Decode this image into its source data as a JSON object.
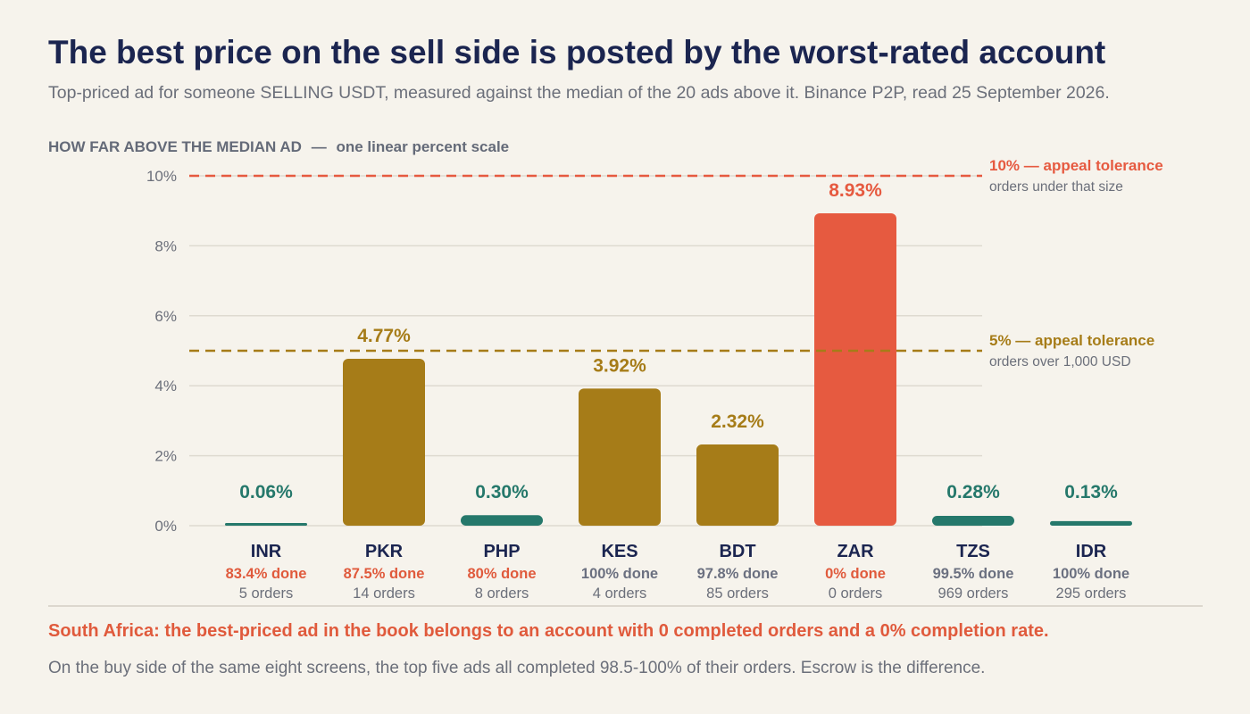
{
  "header": {
    "title": "The best price on the sell side is posted by the worst-rated account",
    "subtitle": "Top-priced ad for someone SELLING USDT, measured against the median of the 20 ads above it. Binance P2P, read 25 September 2026."
  },
  "scale_label": {
    "main": "HOW FAR ABOVE THE MEDIAN AD",
    "sep": "—",
    "sub": "one linear percent scale"
  },
  "colors": {
    "low": "#25786b",
    "mid": "#a67c18",
    "high": "#e65a40",
    "done_bad": "#e05a3c",
    "done_good": "#6b7080",
    "grid": "#dedad0",
    "text_dark": "#1b2550",
    "text_muted": "#6b6f7a"
  },
  "chart_data": {
    "type": "bar",
    "ylabel": "HOW FAR ABOVE THE MEDIAN AD — one linear percent scale",
    "ylim": [
      0,
      10
    ],
    "yticks": [
      0,
      2,
      4,
      6,
      8,
      10
    ],
    "ytick_labels": [
      "0%",
      "2%",
      "4%",
      "6%",
      "8%",
      "10%"
    ],
    "grid": true,
    "categories": [
      "INR",
      "PKR",
      "PHP",
      "KES",
      "BDT",
      "ZAR",
      "TZS",
      "IDR"
    ],
    "values": [
      0.06,
      4.77,
      0.3,
      3.92,
      2.32,
      8.93,
      0.28,
      0.13
    ],
    "value_labels": [
      "0.06%",
      "4.77%",
      "0.30%",
      "3.92%",
      "2.32%",
      "8.93%",
      "0.28%",
      "0.13%"
    ],
    "color_keys": [
      "low",
      "mid",
      "low",
      "mid",
      "mid",
      "high",
      "low",
      "low"
    ],
    "completion": [
      "83.4% done",
      "87.5% done",
      "80% done",
      "100% done",
      "97.8% done",
      "0% done",
      "99.5% done",
      "100% done"
    ],
    "completion_flag": [
      "bad",
      "bad",
      "bad",
      "good",
      "good",
      "bad",
      "good",
      "good"
    ],
    "orders": [
      "5 orders",
      "14 orders",
      "8 orders",
      "4 orders",
      "85 orders",
      "0 orders",
      "969 orders",
      "295 orders"
    ],
    "thresholds": [
      {
        "value": 10,
        "label": "10%",
        "sep": "—",
        "name": "appeal tolerance",
        "note": "orders under that size",
        "color_key": "high"
      },
      {
        "value": 5,
        "label": "5%",
        "sep": "—",
        "name": "appeal tolerance",
        "note": "orders over 1,000 USD",
        "color_key": "mid"
      }
    ]
  },
  "footer": {
    "callout": "South Africa: the best-priced ad in the book belongs to an account with 0 completed orders and a 0% completion rate.",
    "note": "On the buy side of the same eight screens, the top five ads all completed 98.5-100% of their orders. Escrow is the difference."
  }
}
